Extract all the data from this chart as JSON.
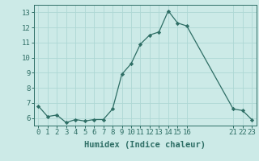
{
  "x": [
    0,
    1,
    2,
    3,
    4,
    5,
    6,
    7,
    8,
    9,
    10,
    11,
    12,
    13,
    14,
    15,
    16,
    21,
    22,
    23
  ],
  "y": [
    6.8,
    6.1,
    6.2,
    5.7,
    5.9,
    5.8,
    5.9,
    5.9,
    6.6,
    8.9,
    9.6,
    10.9,
    11.5,
    11.7,
    13.1,
    12.3,
    12.1,
    6.6,
    6.5,
    5.9
  ],
  "line_color": "#2e6e65",
  "marker": "D",
  "marker_size": 2.2,
  "bg_color": "#cceae7",
  "grid_color": "#aed8d4",
  "xlabel": "Humidex (Indice chaleur)",
  "ylabel": "",
  "xlim": [
    -0.5,
    23.5
  ],
  "ylim": [
    5.5,
    13.5
  ],
  "yticks": [
    6,
    7,
    8,
    9,
    10,
    11,
    12,
    13
  ],
  "xticks": [
    0,
    1,
    2,
    3,
    4,
    5,
    6,
    7,
    8,
    9,
    10,
    11,
    12,
    13,
    14,
    15,
    16,
    21,
    22,
    23
  ],
  "xtick_labels": [
    "0",
    "1",
    "2",
    "3",
    "4",
    "5",
    "6",
    "7",
    "8",
    "9",
    "10",
    "11",
    "12",
    "13",
    "14",
    "15",
    "16",
    "21",
    "22",
    "23"
  ],
  "tick_fontsize": 6.5,
  "label_fontsize": 7.5
}
